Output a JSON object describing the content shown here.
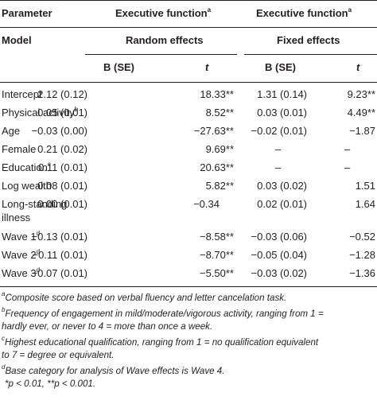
{
  "header": {
    "col_param": "Parameter",
    "col_model": "Model",
    "group1": "Executive function",
    "group1_sup": "a",
    "group2": "Executive function",
    "group2_sup": "a",
    "random": "Random effects",
    "fixed": "Fixed effects",
    "b_se1": "B (SE)",
    "t1": "t",
    "b_se2": "B (SE)",
    "t2": "t"
  },
  "rows": [
    {
      "label": "Intercept",
      "sup": "",
      "b1": "2.12 (0.12)",
      "t1": "18.33**",
      "b2": "1.31 (0.14)",
      "t2": "9.23**"
    },
    {
      "label": "Physical activity",
      "sup": "b",
      "b1": "0.05 (0.01)",
      "t1": "8.52**",
      "b2": "0.03 (0.01)",
      "t2": "4.49**"
    },
    {
      "label": "Age",
      "sup": "",
      "b1": "−0.03 (0.00)",
      "t1": "−27.63**",
      "b2": "−0.02 (0.01)",
      "t2": "−1.87"
    },
    {
      "label": "Female",
      "sup": "",
      "b1": "0.21 (0.02)",
      "t1": "9.69**",
      "b2": "–",
      "t2": "–"
    },
    {
      "label": "Education",
      "sup": "c",
      "b1": "0.11 (0.01)",
      "t1": "20.63**",
      "b2": "–",
      "t2": "–"
    },
    {
      "label": "Log wealth",
      "sup": "",
      "b1": "0.08 (0.01)",
      "t1": "5.82**",
      "b2": "0.03 (0.02)",
      "t2": "1.51"
    },
    {
      "label": "Long-standing",
      "label2": "illness",
      "sup": "",
      "b1": "0.00 (0.01)",
      "t1": "−0.34",
      "b2": "0.02 (0.01)",
      "t2": "1.64"
    },
    {
      "label": "Wave 1",
      "sup": "d",
      "b1": "−0.13 (0.01)",
      "t1": "−8.58**",
      "b2": "−0.03 (0.06)",
      "t2": "−0.52"
    },
    {
      "label": "Wave 2",
      "sup": "d",
      "b1": "−0.11 (0.01)",
      "t1": "−8.70**",
      "b2": "−0.05 (0.04)",
      "t2": "−1.28"
    },
    {
      "label": "Wave 3",
      "sup": "d",
      "b1": "−0.07 (0.01)",
      "t1": "−5.50**",
      "b2": "−0.03 (0.02)",
      "t2": "−1.36"
    }
  ],
  "notes": {
    "a_sup": "a",
    "a": "Composite score based on verbal fluency and letter cancelation task.",
    "b_sup": "b",
    "b_line1": "Frequency of engagement in mild/moderate/vigorous activity, ranging from 1 =",
    "b_line2": "hardly ever, or never to 4 = more than once a week.",
    "c_sup": "c",
    "c_line1": "Highest educational qualification, ranging from 1 = no qualification equivalent",
    "c_line2": "to 7 = degree or equivalent.",
    "d_sup": "d",
    "d": "Base category for analysis of Wave effects is Wave 4.",
    "p_note": "*p < 0.01, **p < 0.001."
  }
}
